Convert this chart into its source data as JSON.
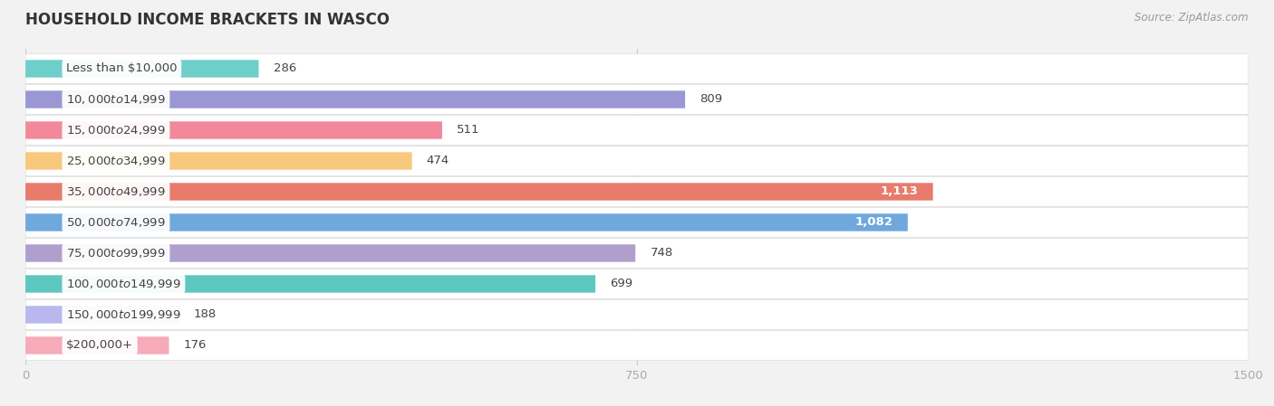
{
  "title": "HOUSEHOLD INCOME BRACKETS IN WASCO",
  "source": "Source: ZipAtlas.com",
  "categories": [
    "Less than $10,000",
    "$10,000 to $14,999",
    "$15,000 to $24,999",
    "$25,000 to $34,999",
    "$35,000 to $49,999",
    "$50,000 to $74,999",
    "$75,000 to $99,999",
    "$100,000 to $149,999",
    "$150,000 to $199,999",
    "$200,000+"
  ],
  "values": [
    286,
    809,
    511,
    474,
    1113,
    1082,
    748,
    699,
    188,
    176
  ],
  "bar_colors": [
    "#6ecfca",
    "#9b97d4",
    "#f2899a",
    "#f8c87c",
    "#e87b6b",
    "#6fa8dc",
    "#b09fcc",
    "#5ec8c0",
    "#b8b8ee",
    "#f7aab8"
  ],
  "xlim": [
    0,
    1500
  ],
  "xticks": [
    0,
    750,
    1500
  ],
  "bar_height": 0.55,
  "background_color": "#f2f2f2",
  "bar_bg_color": "#ffffff",
  "label_color_dark": "#444444",
  "label_color_white": "#ffffff",
  "white_label_threshold": 900,
  "title_fontsize": 12,
  "label_fontsize": 9.5,
  "tick_fontsize": 9.5,
  "source_fontsize": 8.5,
  "row_bg_light": "#f7f7f7",
  "row_bg_dark": "#eeeeee"
}
